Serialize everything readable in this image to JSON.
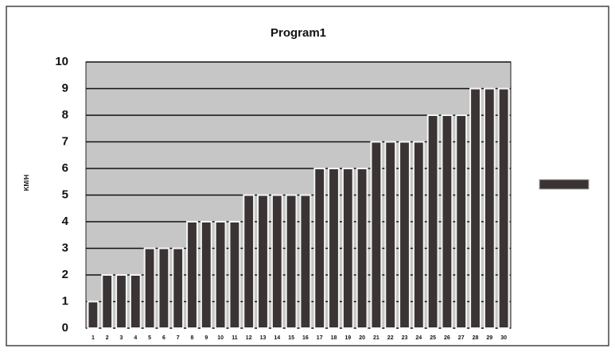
{
  "chart_data": {
    "type": "bar",
    "title": "Program1",
    "y_label": "KM/H",
    "categories": [
      "1",
      "2",
      "3",
      "4",
      "5",
      "6",
      "7",
      "8",
      "9",
      "10",
      "11",
      "12",
      "13",
      "14",
      "15",
      "16",
      "17",
      "18",
      "19",
      "20",
      "21",
      "22",
      "23",
      "24",
      "25",
      "26",
      "27",
      "28",
      "29",
      "30"
    ],
    "values": [
      1,
      2,
      2,
      2,
      3,
      3,
      3,
      4,
      4,
      4,
      4,
      5,
      5,
      5,
      5,
      5,
      6,
      6,
      6,
      6,
      7,
      7,
      7,
      7,
      8,
      8,
      8,
      9,
      9,
      9
    ],
    "color": "#3a3434",
    "ylim": [
      0,
      10
    ],
    "yticks": [
      0,
      1,
      2,
      3,
      4,
      5,
      6,
      7,
      8,
      9,
      10
    ],
    "grid": true,
    "legend": "right"
  }
}
